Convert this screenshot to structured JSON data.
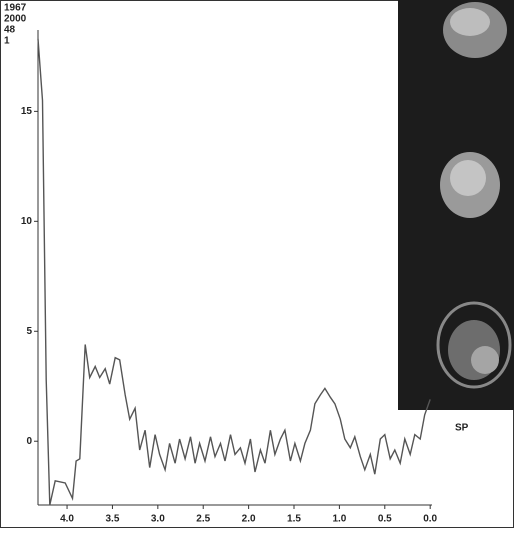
{
  "chart_data": {
    "type": "line",
    "annotations": [
      "1967",
      "2000",
      "48",
      "1"
    ],
    "label": "SP",
    "x": [
      4.32,
      4.27,
      4.23,
      4.19,
      4.13,
      4.02,
      3.94,
      3.9,
      3.86,
      3.8,
      3.75,
      3.69,
      3.64,
      3.58,
      3.53,
      3.47,
      3.42,
      3.36,
      3.31,
      3.25,
      3.2,
      3.14,
      3.09,
      3.03,
      2.98,
      2.92,
      2.87,
      2.81,
      2.76,
      2.7,
      2.64,
      2.59,
      2.54,
      2.48,
      2.42,
      2.37,
      2.31,
      2.26,
      2.2,
      2.15,
      2.09,
      2.04,
      1.98,
      1.93,
      1.87,
      1.82,
      1.76,
      1.71,
      1.65,
      1.6,
      1.54,
      1.49,
      1.43,
      1.38,
      1.32,
      1.27,
      1.21,
      1.16,
      1.1,
      1.05,
      0.99,
      0.94,
      0.88,
      0.83,
      0.77,
      0.72,
      0.66,
      0.61,
      0.55,
      0.5,
      0.44,
      0.39,
      0.33,
      0.28,
      0.22,
      0.17,
      0.11,
      0.06,
      0.0
    ],
    "series": [
      {
        "color": "#555555",
        "values": [
          18.3,
          15.5,
          2.8,
          -2.9,
          -1.8,
          -1.9,
          -2.6,
          -0.9,
          -0.8,
          4.4,
          2.9,
          3.4,
          2.9,
          3.3,
          2.6,
          3.8,
          3.7,
          2.1,
          1.0,
          1.5,
          -0.4,
          0.5,
          -1.2,
          0.3,
          -0.6,
          -1.3,
          -0.1,
          -1.0,
          0.1,
          -0.8,
          0.2,
          -1.0,
          -0.1,
          -0.9,
          0.2,
          -0.7,
          -0.1,
          -0.9,
          0.3,
          -0.6,
          -0.3,
          -1.0,
          0.1,
          -1.4,
          -0.4,
          -1.0,
          0.5,
          -0.6,
          0.1,
          0.5,
          -0.9,
          -0.1,
          -0.9,
          -0.1,
          0.5,
          1.7,
          2.1,
          2.4,
          2.0,
          1.7,
          1.0,
          0.1,
          -0.3,
          0.2,
          -0.7,
          -1.3,
          -0.6,
          -1.5,
          0.1,
          0.3,
          -0.8,
          -0.4,
          -1.0,
          0.1,
          -0.6,
          0.3,
          0.1,
          1.2,
          1.9
        ]
      }
    ],
    "xlim": [
      4.32,
      -0.02
    ],
    "xticks": [
      {
        "value": 4,
        "label": "4.0"
      },
      3.5,
      {
        "value": 3,
        "label": "3.0"
      },
      2.5,
      {
        "value": 2,
        "label": "2.0"
      },
      1.5,
      {
        "value": 1,
        "label": "1.0"
      },
      0.5,
      {
        "value": 0,
        "label": "0.0"
      }
    ],
    "ylim": [
      -2.9,
      18.7
    ],
    "yticks": [
      0,
      5,
      10,
      15
    ]
  }
}
